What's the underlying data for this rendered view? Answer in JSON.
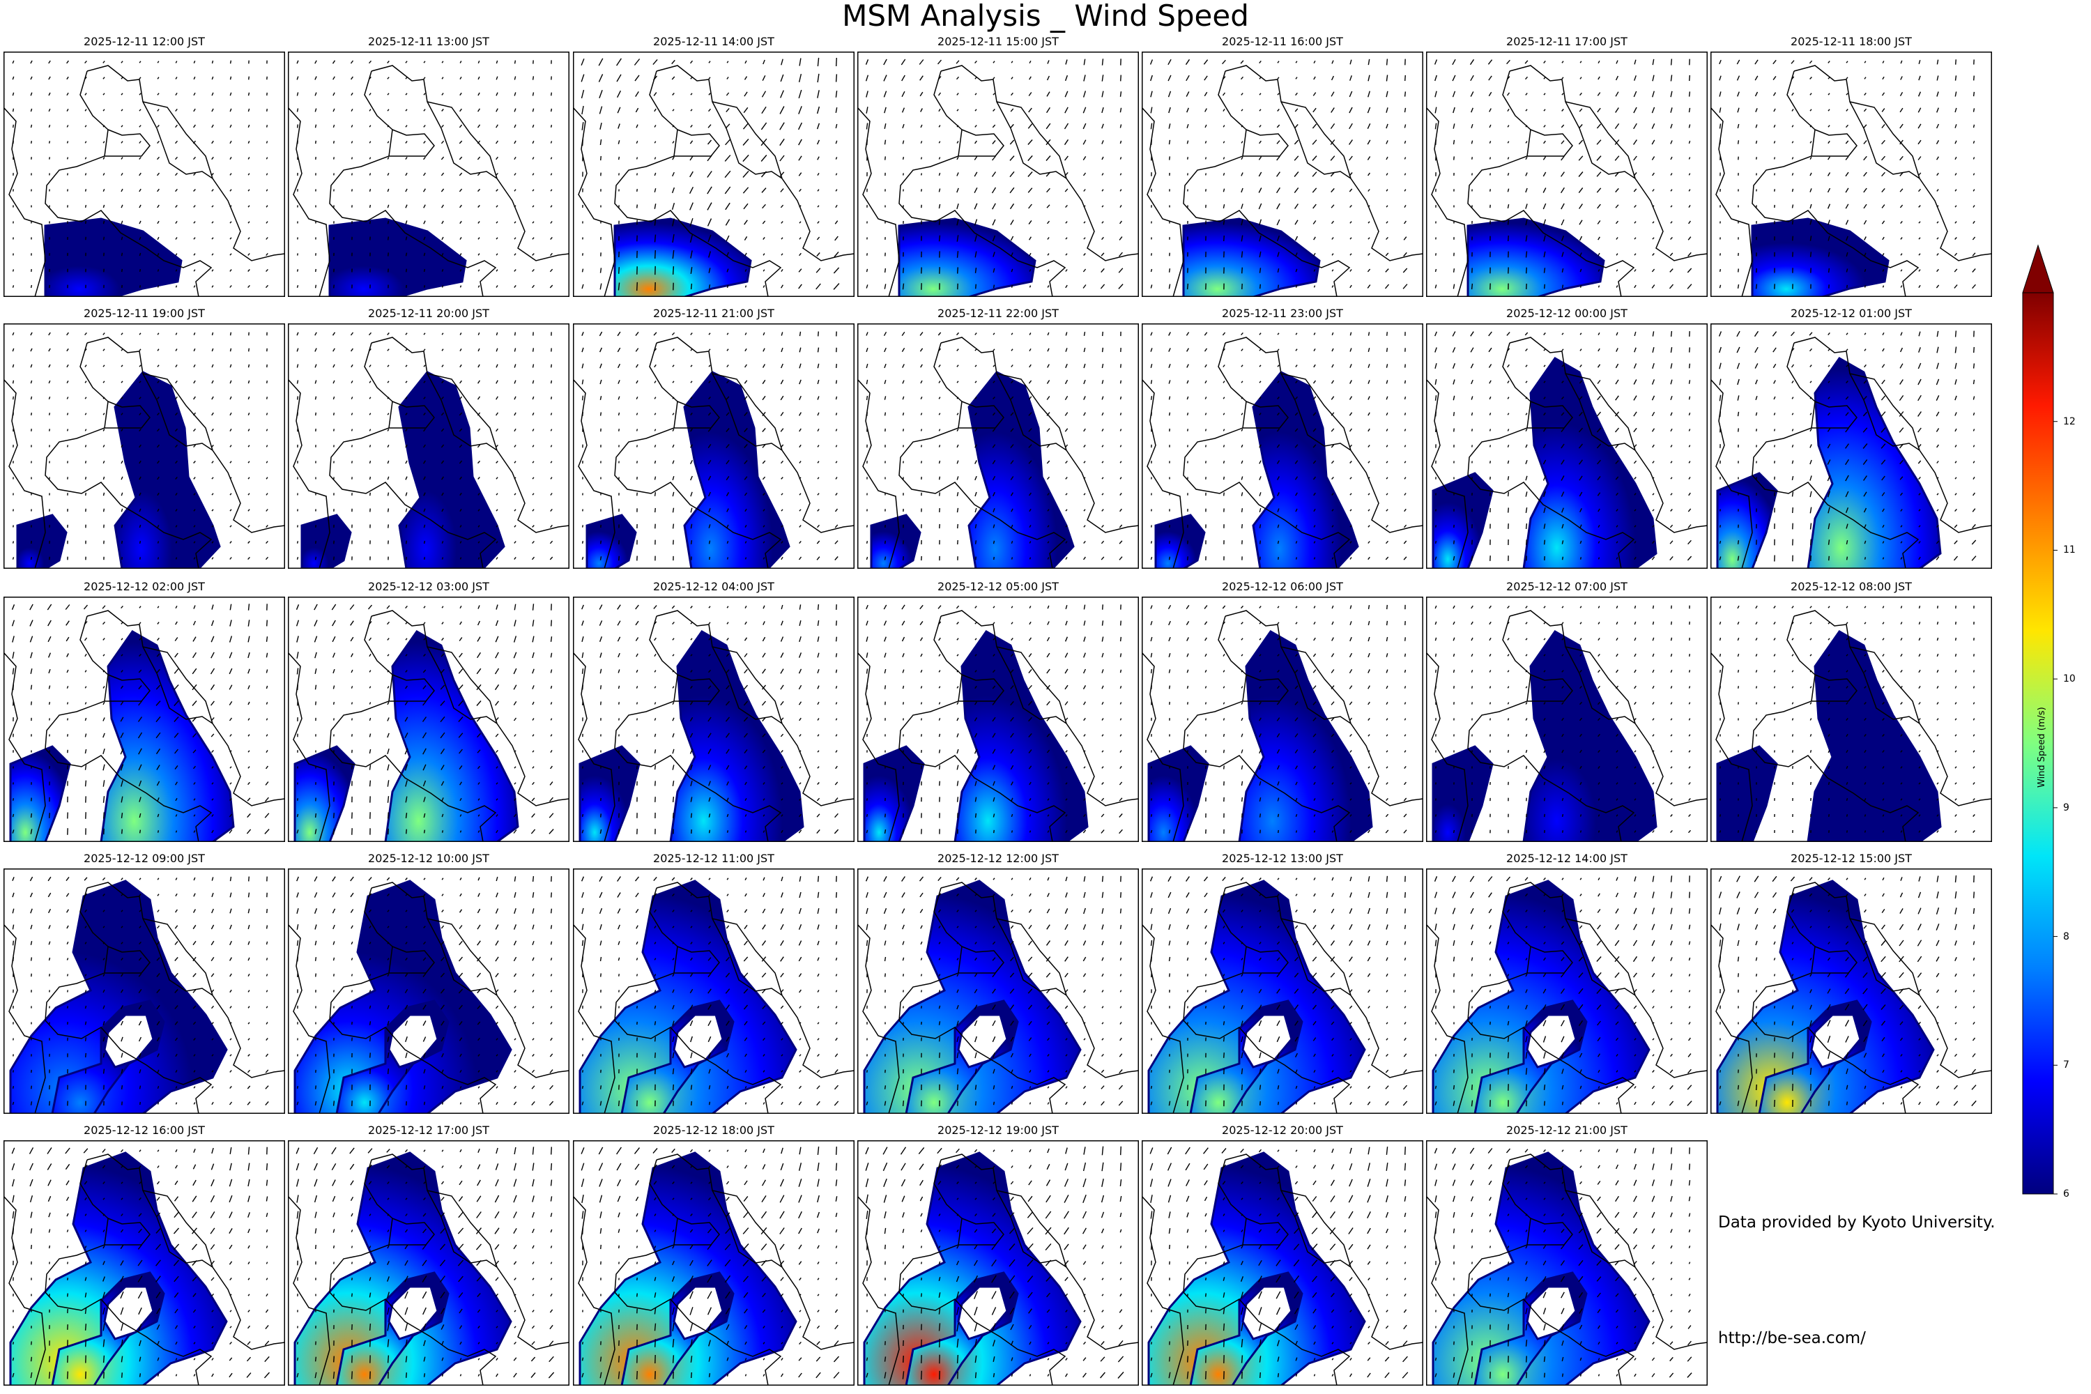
{
  "title": "MSM Analysis _ Wind Speed",
  "chart_data": {
    "type": "heatmap",
    "panels": [
      {
        "label": "2025-12-11 12:00 JST",
        "intensity": 0.15,
        "stage": 0
      },
      {
        "label": "2025-12-11 13:00 JST",
        "intensity": 0.2,
        "stage": 0
      },
      {
        "label": "2025-12-11 14:00 JST",
        "intensity": 0.85,
        "stage": 0
      },
      {
        "label": "2025-12-11 15:00 JST",
        "intensity": 0.6,
        "stage": 0
      },
      {
        "label": "2025-12-11 16:00 JST",
        "intensity": 0.55,
        "stage": 0
      },
      {
        "label": "2025-12-11 17:00 JST",
        "intensity": 0.55,
        "stage": 0
      },
      {
        "label": "2025-12-11 18:00 JST",
        "intensity": 0.4,
        "stage": 0
      },
      {
        "label": "2025-12-11 19:00 JST",
        "intensity": 0.15,
        "stage": 1
      },
      {
        "label": "2025-12-11 20:00 JST",
        "intensity": 0.2,
        "stage": 1
      },
      {
        "label": "2025-12-11 21:00 JST",
        "intensity": 0.35,
        "stage": 1
      },
      {
        "label": "2025-12-11 22:00 JST",
        "intensity": 0.3,
        "stage": 1
      },
      {
        "label": "2025-12-11 23:00 JST",
        "intensity": 0.25,
        "stage": 1
      },
      {
        "label": "2025-12-12 00:00 JST",
        "intensity": 0.45,
        "stage": 2
      },
      {
        "label": "2025-12-12 01:00 JST",
        "intensity": 0.55,
        "stage": 2
      },
      {
        "label": "2025-12-12 02:00 JST",
        "intensity": 0.6,
        "stage": 2
      },
      {
        "label": "2025-12-12 03:00 JST",
        "intensity": 0.6,
        "stage": 2
      },
      {
        "label": "2025-12-12 04:00 JST",
        "intensity": 0.45,
        "stage": 2
      },
      {
        "label": "2025-12-12 05:00 JST",
        "intensity": 0.4,
        "stage": 2
      },
      {
        "label": "2025-12-12 06:00 JST",
        "intensity": 0.3,
        "stage": 2
      },
      {
        "label": "2025-12-12 07:00 JST",
        "intensity": 0.15,
        "stage": 2
      },
      {
        "label": "2025-12-12 08:00 JST",
        "intensity": 0.1,
        "stage": 2
      },
      {
        "label": "2025-12-12 09:00 JST",
        "intensity": 0.35,
        "stage": 3
      },
      {
        "label": "2025-12-12 10:00 JST",
        "intensity": 0.45,
        "stage": 3
      },
      {
        "label": "2025-12-12 11:00 JST",
        "intensity": 0.5,
        "stage": 3
      },
      {
        "label": "2025-12-12 12:00 JST",
        "intensity": 0.5,
        "stage": 3
      },
      {
        "label": "2025-12-12 13:00 JST",
        "intensity": 0.5,
        "stage": 3
      },
      {
        "label": "2025-12-12 14:00 JST",
        "intensity": 0.6,
        "stage": 3
      },
      {
        "label": "2025-12-12 15:00 JST",
        "intensity": 0.65,
        "stage": 3
      },
      {
        "label": "2025-12-12 16:00 JST",
        "intensity": 0.72,
        "stage": 3
      },
      {
        "label": "2025-12-12 17:00 JST",
        "intensity": 0.75,
        "stage": 3
      },
      {
        "label": "2025-12-12 18:00 JST",
        "intensity": 0.82,
        "stage": 3
      },
      {
        "label": "2025-12-12 19:00 JST",
        "intensity": 0.88,
        "stage": 3
      },
      {
        "label": "2025-12-12 20:00 JST",
        "intensity": 0.8,
        "stage": 3
      },
      {
        "label": "2025-12-12 21:00 JST",
        "intensity": 0.6,
        "stage": 3
      }
    ],
    "colorbar": {
      "label": "Wind Speed (m/s)",
      "range": [
        6,
        13
      ],
      "ticks": [
        "6",
        "7",
        "8",
        "9",
        "10",
        "11",
        "12"
      ],
      "extend": "max",
      "colormap": [
        "#00007f",
        "#0000ff",
        "#0080ff",
        "#00e5f8",
        "#80ff80",
        "#ffe600",
        "#ff8000",
        "#ff1a00",
        "#800000"
      ]
    }
  },
  "credits": {
    "provider": "Data provided by Kyoto University.",
    "url": "http://be-sea.com/"
  }
}
